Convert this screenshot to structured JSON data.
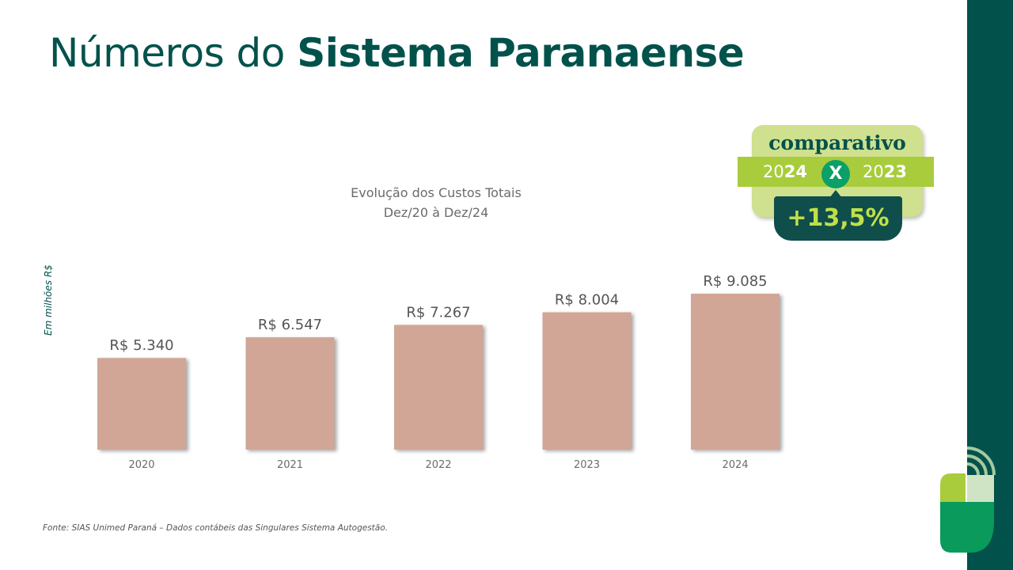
{
  "slide": {
    "title_regular": "Números do ",
    "title_bold": "Sistema Paranaense",
    "y_note": "Em milhões R$",
    "source": "Fonte: SIAS Unimed Paraná – Dados contábeis das Singulares Sistema Autogestão."
  },
  "badge": {
    "word": "comparativo",
    "year_left_prefix": "20",
    "year_left_bold": "24",
    "x_mark": "X",
    "year_right_prefix": "20",
    "year_right_bold": "23",
    "percent": "+13,5%"
  },
  "colors": {
    "brand_dark": "#02524b",
    "bar": "#d1a696",
    "badge_light": "#cfe08f",
    "badge_strip": "#a8cc3c",
    "badge_x": "#0aa067",
    "badge_pct": "#bfe04a"
  },
  "chart_data": {
    "type": "bar",
    "title": "Evolução dos Custos Totais",
    "subtitle": "Dez/20 à Dez/24",
    "categories": [
      "2020",
      "2021",
      "2022",
      "2023",
      "2024"
    ],
    "values": [
      5340,
      6547,
      7267,
      8004,
      9085
    ],
    "value_labels": [
      "R$ 5.340",
      "R$ 6.547",
      "R$ 7.267",
      "R$ 8.004",
      "R$ 9.085"
    ],
    "ylabel": "Em milhões R$",
    "grid": false,
    "legend": "none"
  }
}
